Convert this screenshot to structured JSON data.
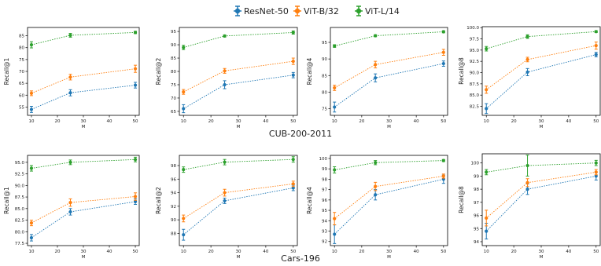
{
  "legend": [
    {
      "name": "ResNet-50",
      "color": "#1f77b4"
    },
    {
      "name": "ViT-B/32",
      "color": "#ff7f0e"
    },
    {
      "name": "ViT-L/14",
      "color": "#2ca02c"
    }
  ],
  "groups": [
    "CUB-200-2011",
    "Cars-196"
  ],
  "chart_data": [
    {
      "type": "line",
      "group": "CUB-200-2011",
      "ylabel": "Recall@1",
      "xlabel": "M",
      "x": [
        10,
        25,
        50
      ],
      "xticks": [
        10,
        20,
        30,
        40,
        50
      ],
      "xlim": [
        8.5,
        51.5
      ],
      "ylim": [
        51.5,
        88.5
      ],
      "yticks": [
        55,
        60,
        65,
        70,
        75,
        80,
        85
      ],
      "series": [
        {
          "name": "ResNet-50",
          "values": [
            54.0,
            61.0,
            64.2
          ],
          "err": [
            1.3,
            1.3,
            1.2
          ]
        },
        {
          "name": "ViT-B/32",
          "values": [
            60.8,
            67.6,
            71.1
          ],
          "err": [
            1.0,
            1.2,
            1.5
          ]
        },
        {
          "name": "ViT-L/14",
          "values": [
            81.2,
            85.2,
            86.4
          ],
          "err": [
            1.3,
            0.8,
            0.5
          ]
        }
      ]
    },
    {
      "type": "line",
      "group": "CUB-200-2011",
      "ylabel": "Recall@2",
      "xlabel": "M",
      "x": [
        10,
        25,
        50
      ],
      "xticks": [
        10,
        20,
        30,
        40,
        50
      ],
      "xlim": [
        8.5,
        51.5
      ],
      "ylim": [
        63.5,
        96.5
      ],
      "yticks": [
        65,
        70,
        75,
        80,
        85,
        90,
        95
      ],
      "series": [
        {
          "name": "ResNet-50",
          "values": [
            66.0,
            75.0,
            78.6
          ],
          "err": [
            1.5,
            1.5,
            1.0
          ]
        },
        {
          "name": "ViT-B/32",
          "values": [
            72.3,
            80.2,
            83.8
          ],
          "err": [
            0.9,
            0.9,
            1.2
          ]
        },
        {
          "name": "ViT-L/14",
          "values": [
            89.0,
            93.3,
            94.6
          ],
          "err": [
            0.8,
            0.4,
            0.6
          ]
        }
      ]
    },
    {
      "type": "line",
      "group": "CUB-200-2011",
      "ylabel": "Recall@4",
      "xlabel": "M",
      "x": [
        10,
        25,
        50
      ],
      "xticks": [
        10,
        20,
        30,
        40,
        50
      ],
      "xlim": [
        8.5,
        51.5
      ],
      "ylim": [
        73,
        99.5
      ],
      "yticks": [
        75,
        80,
        85,
        90,
        95
      ],
      "series": [
        {
          "name": "ResNet-50",
          "values": [
            75.5,
            84.3,
            88.6
          ],
          "err": [
            1.5,
            1.2,
            0.8
          ]
        },
        {
          "name": "ViT-B/32",
          "values": [
            81.3,
            88.3,
            92.0
          ],
          "err": [
            0.8,
            1.0,
            0.9
          ]
        },
        {
          "name": "ViT-L/14",
          "values": [
            93.9,
            97.0,
            98.2
          ],
          "err": [
            0.4,
            0.3,
            0.3
          ]
        }
      ]
    },
    {
      "type": "line",
      "group": "CUB-200-2011",
      "ylabel": "Recall@8",
      "xlabel": "M",
      "x": [
        10,
        25,
        50
      ],
      "xticks": [
        10,
        20,
        30,
        40,
        50
      ],
      "xlim": [
        8.5,
        51.5
      ],
      "ylim": [
        80.5,
        100.2
      ],
      "yticks": [
        82.5,
        85.0,
        87.5,
        90.0,
        92.5,
        95.0,
        97.5,
        100.0
      ],
      "series": [
        {
          "name": "ResNet-50",
          "values": [
            82.0,
            90.1,
            94.0
          ],
          "err": [
            1.1,
            0.8,
            0.5
          ]
        },
        {
          "name": "ViT-B/32",
          "values": [
            86.2,
            92.9,
            96.0
          ],
          "err": [
            0.8,
            0.5,
            0.8
          ]
        },
        {
          "name": "ViT-L/14",
          "values": [
            95.3,
            98.0,
            99.1
          ],
          "err": [
            0.5,
            0.4,
            0.2
          ]
        }
      ]
    },
    {
      "type": "line",
      "group": "Cars-196",
      "ylabel": "Recall@1",
      "xlabel": "M",
      "x": [
        10,
        25,
        50
      ],
      "xticks": [
        10,
        20,
        30,
        40,
        50
      ],
      "xlim": [
        8.5,
        51.5
      ],
      "ylim": [
        77,
        96.5
      ],
      "yticks": [
        77.5,
        80.0,
        82.5,
        85.0,
        87.5,
        90.0,
        92.5,
        95.0
      ],
      "series": [
        {
          "name": "ResNet-50",
          "values": [
            78.7,
            84.3,
            86.5
          ],
          "err": [
            0.7,
            0.7,
            0.6
          ]
        },
        {
          "name": "ViT-B/32",
          "values": [
            81.9,
            86.3,
            87.6
          ],
          "err": [
            0.6,
            0.8,
            0.8
          ]
        },
        {
          "name": "ViT-L/14",
          "values": [
            93.7,
            95.0,
            95.6
          ],
          "err": [
            0.6,
            0.5,
            0.5
          ]
        }
      ]
    },
    {
      "type": "line",
      "group": "Cars-196",
      "ylabel": "Recall@2",
      "xlabel": "M",
      "x": [
        10,
        25,
        50
      ],
      "xticks": [
        10,
        20,
        30,
        40,
        50
      ],
      "xlim": [
        8.5,
        51.5
      ],
      "ylim": [
        86.2,
        99.5
      ],
      "yticks": [
        88,
        90,
        92,
        94,
        96,
        98
      ],
      "series": [
        {
          "name": "ResNet-50",
          "values": [
            87.8,
            92.8,
            94.7
          ],
          "err": [
            0.8,
            0.4,
            0.4
          ]
        },
        {
          "name": "ViT-B/32",
          "values": [
            90.2,
            94.0,
            95.3
          ],
          "err": [
            0.5,
            0.5,
            0.4
          ]
        },
        {
          "name": "ViT-L/14",
          "values": [
            97.4,
            98.5,
            98.9
          ],
          "err": [
            0.4,
            0.4,
            0.4
          ]
        }
      ]
    },
    {
      "type": "line",
      "group": "Cars-196",
      "ylabel": "Recall@4",
      "xlabel": "M",
      "x": [
        10,
        25,
        50
      ],
      "xticks": [
        10,
        20,
        30,
        40,
        50
      ],
      "xlim": [
        8.5,
        51.5
      ],
      "ylim": [
        91.6,
        100.3
      ],
      "yticks": [
        92,
        93,
        94,
        95,
        96,
        97,
        98,
        99,
        100
      ],
      "series": [
        {
          "name": "ResNet-50",
          "values": [
            92.7,
            96.5,
            98.0
          ],
          "err": [
            0.9,
            0.5,
            0.4
          ]
        },
        {
          "name": "ViT-B/32",
          "values": [
            94.2,
            97.3,
            98.3
          ],
          "err": [
            0.6,
            0.4,
            0.2
          ]
        },
        {
          "name": "ViT-L/14",
          "values": [
            98.9,
            99.6,
            99.8
          ],
          "err": [
            0.3,
            0.2,
            0.1
          ]
        }
      ]
    },
    {
      "type": "line",
      "group": "Cars-196",
      "ylabel": "Recall@8",
      "xlabel": "M",
      "x": [
        10,
        25,
        50
      ],
      "xticks": [
        10,
        20,
        30,
        40,
        50
      ],
      "xlim": [
        8.5,
        51.5
      ],
      "ylim": [
        93.7,
        100.7
      ],
      "yticks": [
        94,
        95,
        96,
        97,
        98,
        99,
        100
      ],
      "series": [
        {
          "name": "ResNet-50",
          "values": [
            94.8,
            98.0,
            99.0
          ],
          "err": [
            0.6,
            0.4,
            0.3
          ]
        },
        {
          "name": "ViT-B/32",
          "values": [
            95.8,
            98.5,
            99.3
          ],
          "err": [
            0.6,
            0.3,
            0.2
          ]
        },
        {
          "name": "ViT-L/14",
          "values": [
            99.3,
            99.8,
            100.0
          ],
          "err": [
            0.2,
            0.8,
            0.2
          ]
        }
      ]
    }
  ]
}
